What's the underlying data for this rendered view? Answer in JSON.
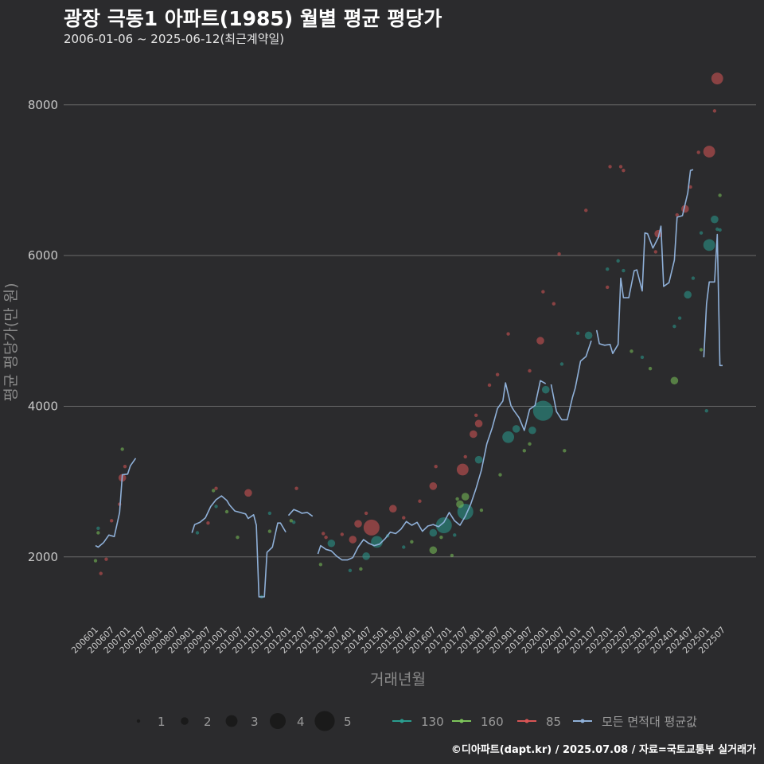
{
  "chart_data": {
    "type": "scatter",
    "title": "광장 극동1 아파트(1985) 월별 평균 평당가",
    "subtitle": "2006-01-06 ~ 2025-06-12(최근계약일)",
    "caption": "©디아파트(dapt.kr) / 2025.07.08 / 자료=국토교통부 실거래가",
    "xlabel": "거래년월",
    "ylabel": "평균 평당가(만 원)",
    "x_range": [
      "2006-01",
      "2025-07"
    ],
    "ylim": [
      1100,
      8600
    ],
    "y_ticks": [
      2000,
      4000,
      6000,
      8000
    ],
    "x_ticks": [
      "200601",
      "200607",
      "200701",
      "200707",
      "200801",
      "200807",
      "200901",
      "200907",
      "201001",
      "201007",
      "201101",
      "201107",
      "201201",
      "201207",
      "201301",
      "201307",
      "201401",
      "201407",
      "201501",
      "201507",
      "201601",
      "201607",
      "201701",
      "201707",
      "201801",
      "201807",
      "201901",
      "201907",
      "202001",
      "202007",
      "202101",
      "202107",
      "202201",
      "202207",
      "202301",
      "202307",
      "202401",
      "202407",
      "202501",
      "202507"
    ],
    "grid": "horizontal",
    "size_legend": [
      1,
      2,
      3,
      4,
      5
    ],
    "legend": [
      {
        "name": "130",
        "color": "#2a9d8f"
      },
      {
        "name": "160",
        "color": "#7cc45a"
      },
      {
        "name": "85",
        "color": "#d95555"
      },
      {
        "name": "모든 면적대 평균값",
        "color": "#8fb0d8"
      }
    ],
    "series": [
      {
        "name": "85",
        "color": "#d95555",
        "points": [
          [
            "2006-03",
            1780,
            1
          ],
          [
            "2006-05",
            1970,
            1
          ],
          [
            "2006-07",
            2480,
            1
          ],
          [
            "2006-10",
            2700,
            1
          ],
          [
            "2006-11",
            3050,
            2
          ],
          [
            "2006-12",
            3200,
            1
          ],
          [
            "2009-07",
            2450,
            1
          ],
          [
            "2009-10",
            2910,
            1
          ],
          [
            "2010-10",
            2850,
            2
          ],
          [
            "2012-04",
            2910,
            1
          ],
          [
            "2013-02",
            2310,
            1
          ],
          [
            "2013-03",
            2260,
            1
          ],
          [
            "2013-09",
            2300,
            1
          ],
          [
            "2014-01",
            2230,
            2
          ],
          [
            "2014-03",
            2440,
            2
          ],
          [
            "2014-06",
            2580,
            1
          ],
          [
            "2014-08",
            2390,
            4
          ],
          [
            "2015-04",
            2640,
            2
          ],
          [
            "2015-08",
            2520,
            1
          ],
          [
            "2016-02",
            2740,
            1
          ],
          [
            "2016-07",
            2940,
            2
          ],
          [
            "2016-08",
            3200,
            1
          ],
          [
            "2017-06",
            3160,
            3
          ],
          [
            "2017-07",
            3330,
            1
          ],
          [
            "2017-10",
            3630,
            2
          ],
          [
            "2017-11",
            3880,
            1
          ],
          [
            "2017-12",
            3770,
            2
          ],
          [
            "2018-04",
            4280,
            1
          ],
          [
            "2018-07",
            4420,
            1
          ],
          [
            "2018-11",
            4960,
            1
          ],
          [
            "2019-07",
            4470,
            1
          ],
          [
            "2019-11",
            4870,
            2
          ],
          [
            "2019-12",
            5520,
            1
          ],
          [
            "2020-04",
            5360,
            1
          ],
          [
            "2020-06",
            6020,
            1
          ],
          [
            "2021-04",
            6600,
            1
          ],
          [
            "2021-12",
            5580,
            1
          ],
          [
            "2022-01",
            7180,
            1
          ],
          [
            "2022-05",
            7180,
            1
          ],
          [
            "2022-06",
            7130,
            1
          ],
          [
            "2023-06",
            6050,
            1
          ],
          [
            "2023-07",
            6290,
            2
          ],
          [
            "2024-02",
            6540,
            1
          ],
          [
            "2024-05",
            6620,
            2
          ],
          [
            "2024-07",
            6910,
            1
          ],
          [
            "2024-10",
            7370,
            1
          ],
          [
            "2025-02",
            7380,
            3
          ],
          [
            "2025-04",
            7920,
            1
          ],
          [
            "2025-05",
            8350,
            3
          ]
        ]
      },
      {
        "name": "130",
        "color": "#2a9d8f",
        "points": [
          [
            "2006-02",
            2380,
            1
          ],
          [
            "2009-03",
            2320,
            1
          ],
          [
            "2009-10",
            2670,
            1
          ],
          [
            "2011-03",
            1470,
            1
          ],
          [
            "2011-06",
            2580,
            1
          ],
          [
            "2012-03",
            2460,
            1
          ],
          [
            "2013-05",
            2180,
            2
          ],
          [
            "2013-12",
            1820,
            1
          ],
          [
            "2014-06",
            2010,
            2
          ],
          [
            "2014-10",
            2200,
            3
          ],
          [
            "2015-02",
            2280,
            1
          ],
          [
            "2015-08",
            2130,
            1
          ],
          [
            "2016-07",
            2320,
            2
          ],
          [
            "2016-11",
            2420,
            4
          ],
          [
            "2017-03",
            2290,
            1
          ],
          [
            "2017-07",
            2600,
            4
          ],
          [
            "2017-12",
            3290,
            2
          ],
          [
            "2018-11",
            3590,
            3
          ],
          [
            "2019-02",
            3700,
            2
          ],
          [
            "2019-08",
            3680,
            2
          ],
          [
            "2019-12",
            3940,
            5
          ],
          [
            "2020-01",
            4220,
            2
          ],
          [
            "2020-07",
            4560,
            1
          ],
          [
            "2021-01",
            4970,
            1
          ],
          [
            "2021-05",
            4940,
            2
          ],
          [
            "2021-12",
            5820,
            1
          ],
          [
            "2022-04",
            5930,
            1
          ],
          [
            "2022-06",
            5800,
            1
          ],
          [
            "2023-01",
            4650,
            1
          ],
          [
            "2024-01",
            5060,
            1
          ],
          [
            "2024-03",
            5170,
            1
          ],
          [
            "2024-06",
            5480,
            2
          ],
          [
            "2024-08",
            5700,
            1
          ],
          [
            "2024-11",
            6300,
            1
          ],
          [
            "2025-01",
            3940,
            1
          ],
          [
            "2025-02",
            6140,
            3
          ],
          [
            "2025-04",
            6480,
            2
          ],
          [
            "2025-05",
            6350,
            1
          ],
          [
            "2025-06",
            6340,
            1
          ]
        ]
      },
      {
        "name": "160",
        "color": "#7cc45a",
        "points": [
          [
            "2006-01",
            1950,
            1
          ],
          [
            "2006-02",
            2320,
            1
          ],
          [
            "2006-11",
            3430,
            1
          ],
          [
            "2009-09",
            2880,
            1
          ],
          [
            "2010-02",
            2600,
            1
          ],
          [
            "2010-06",
            2260,
            1
          ],
          [
            "2011-06",
            2340,
            1
          ],
          [
            "2012-02",
            2480,
            1
          ],
          [
            "2013-01",
            1900,
            1
          ],
          [
            "2014-04",
            1840,
            1
          ],
          [
            "2015-11",
            2200,
            1
          ],
          [
            "2016-07",
            2090,
            2
          ],
          [
            "2016-10",
            2260,
            1
          ],
          [
            "2017-02",
            2020,
            1
          ],
          [
            "2017-04",
            2770,
            1
          ],
          [
            "2017-05",
            2700,
            2
          ],
          [
            "2017-07",
            2800,
            2
          ],
          [
            "2018-01",
            2620,
            1
          ],
          [
            "2018-08",
            3090,
            1
          ],
          [
            "2019-05",
            3410,
            1
          ],
          [
            "2019-07",
            3500,
            1
          ],
          [
            "2020-08",
            3410,
            1
          ],
          [
            "2022-09",
            4730,
            1
          ],
          [
            "2023-04",
            4500,
            1
          ],
          [
            "2024-01",
            4340,
            2
          ],
          [
            "2024-11",
            4750,
            1
          ],
          [
            "2025-06",
            6800,
            1
          ]
        ]
      }
    ],
    "average_line": {
      "name": "모든 면적대 평균값",
      "color": "#8fb0d8",
      "segments": [
        [
          [
            "2006-01",
            2150
          ],
          [
            "2006-02",
            2130
          ],
          [
            "2006-04",
            2190
          ],
          [
            "2006-06",
            2290
          ],
          [
            "2006-08",
            2270
          ],
          [
            "2006-10",
            2590
          ],
          [
            "2006-11",
            3090
          ],
          [
            "2007-01",
            3100
          ],
          [
            "2007-02",
            3210
          ],
          [
            "2007-04",
            3310
          ]
        ],
        [
          [
            "2009-01",
            2320
          ],
          [
            "2009-02",
            2430
          ],
          [
            "2009-04",
            2460
          ],
          [
            "2009-06",
            2520
          ],
          [
            "2009-08",
            2670
          ],
          [
            "2009-10",
            2760
          ],
          [
            "2009-12",
            2810
          ],
          [
            "2010-02",
            2750
          ],
          [
            "2010-03",
            2690
          ],
          [
            "2010-05",
            2610
          ],
          [
            "2010-07",
            2590
          ],
          [
            "2010-09",
            2570
          ],
          [
            "2010-10",
            2510
          ],
          [
            "2010-12",
            2560
          ],
          [
            "2011-01",
            2420
          ],
          [
            "2011-02",
            1470
          ],
          [
            "2011-04",
            1470
          ],
          [
            "2011-05",
            2060
          ],
          [
            "2011-07",
            2130
          ],
          [
            "2011-09",
            2450
          ],
          [
            "2011-10",
            2450
          ],
          [
            "2011-12",
            2330
          ]
        ],
        [
          [
            "2012-01",
            2550
          ],
          [
            "2012-03",
            2630
          ],
          [
            "2012-05",
            2600
          ],
          [
            "2012-06",
            2580
          ],
          [
            "2012-08",
            2590
          ],
          [
            "2012-10",
            2540
          ]
        ],
        [
          [
            "2012-12",
            2040
          ],
          [
            "2013-01",
            2150
          ],
          [
            "2013-03",
            2100
          ],
          [
            "2013-05",
            2080
          ],
          [
            "2013-07",
            2010
          ],
          [
            "2013-09",
            1960
          ],
          [
            "2013-11",
            1960
          ],
          [
            "2014-01",
            1990
          ],
          [
            "2014-03",
            2130
          ],
          [
            "2014-05",
            2230
          ],
          [
            "2014-07",
            2180
          ],
          [
            "2014-09",
            2150
          ],
          [
            "2014-11",
            2170
          ],
          [
            "2015-01",
            2240
          ],
          [
            "2015-03",
            2330
          ],
          [
            "2015-05",
            2310
          ],
          [
            "2015-07",
            2370
          ],
          [
            "2015-09",
            2470
          ],
          [
            "2015-11",
            2420
          ],
          [
            "2016-01",
            2460
          ],
          [
            "2016-03",
            2340
          ],
          [
            "2016-05",
            2410
          ],
          [
            "2016-07",
            2430
          ],
          [
            "2016-09",
            2400
          ],
          [
            "2016-11",
            2460
          ],
          [
            "2017-01",
            2590
          ],
          [
            "2017-03",
            2480
          ],
          [
            "2017-05",
            2420
          ],
          [
            "2017-07",
            2540
          ],
          [
            "2017-09",
            2700
          ],
          [
            "2017-11",
            2910
          ],
          [
            "2018-01",
            3150
          ],
          [
            "2018-03",
            3500
          ],
          [
            "2018-05",
            3710
          ],
          [
            "2018-07",
            3970
          ],
          [
            "2018-09",
            4070
          ],
          [
            "2018-10",
            4310
          ],
          [
            "2018-12",
            4010
          ],
          [
            "2019-01",
            3950
          ],
          [
            "2019-03",
            3850
          ],
          [
            "2019-05",
            3680
          ],
          [
            "2019-07",
            3960
          ],
          [
            "2019-09",
            4010
          ],
          [
            "2019-11",
            4340
          ],
          [
            "2020-01",
            4300
          ]
        ],
        [
          [
            "2020-03",
            4290
          ],
          [
            "2020-05",
            3930
          ],
          [
            "2020-07",
            3820
          ],
          [
            "2020-09",
            3820
          ],
          [
            "2020-11",
            4120
          ],
          [
            "2020-12",
            4240
          ],
          [
            "2021-02",
            4600
          ],
          [
            "2021-04",
            4660
          ],
          [
            "2021-06",
            4870
          ]
        ],
        [
          [
            "2021-08",
            5010
          ],
          [
            "2021-09",
            4830
          ],
          [
            "2021-11",
            4810
          ],
          [
            "2022-01",
            4820
          ],
          [
            "2022-02",
            4700
          ],
          [
            "2022-04",
            4820
          ],
          [
            "2022-05",
            5700
          ],
          [
            "2022-06",
            5440
          ],
          [
            "2022-08",
            5440
          ],
          [
            "2022-10",
            5800
          ],
          [
            "2022-11",
            5810
          ],
          [
            "2023-01",
            5530
          ],
          [
            "2023-02",
            6300
          ],
          [
            "2023-03",
            6290
          ],
          [
            "2023-05",
            6100
          ],
          [
            "2023-07",
            6240
          ],
          [
            "2023-08",
            6390
          ],
          [
            "2023-09",
            5590
          ],
          [
            "2023-11",
            5640
          ],
          [
            "2024-01",
            5940
          ],
          [
            "2024-02",
            6510
          ],
          [
            "2024-04",
            6530
          ],
          [
            "2024-06",
            6830
          ],
          [
            "2024-07",
            7130
          ],
          [
            "2024-08",
            7140
          ]
        ],
        [
          [
            "2024-12",
            4650
          ],
          [
            "2025-01",
            5360
          ],
          [
            "2025-02",
            5650
          ],
          [
            "2025-03",
            5650
          ],
          [
            "2025-04",
            5650
          ],
          [
            "2025-05",
            6280
          ],
          [
            "2025-06",
            4540
          ],
          [
            "2025-07",
            4540
          ]
        ]
      ]
    }
  }
}
